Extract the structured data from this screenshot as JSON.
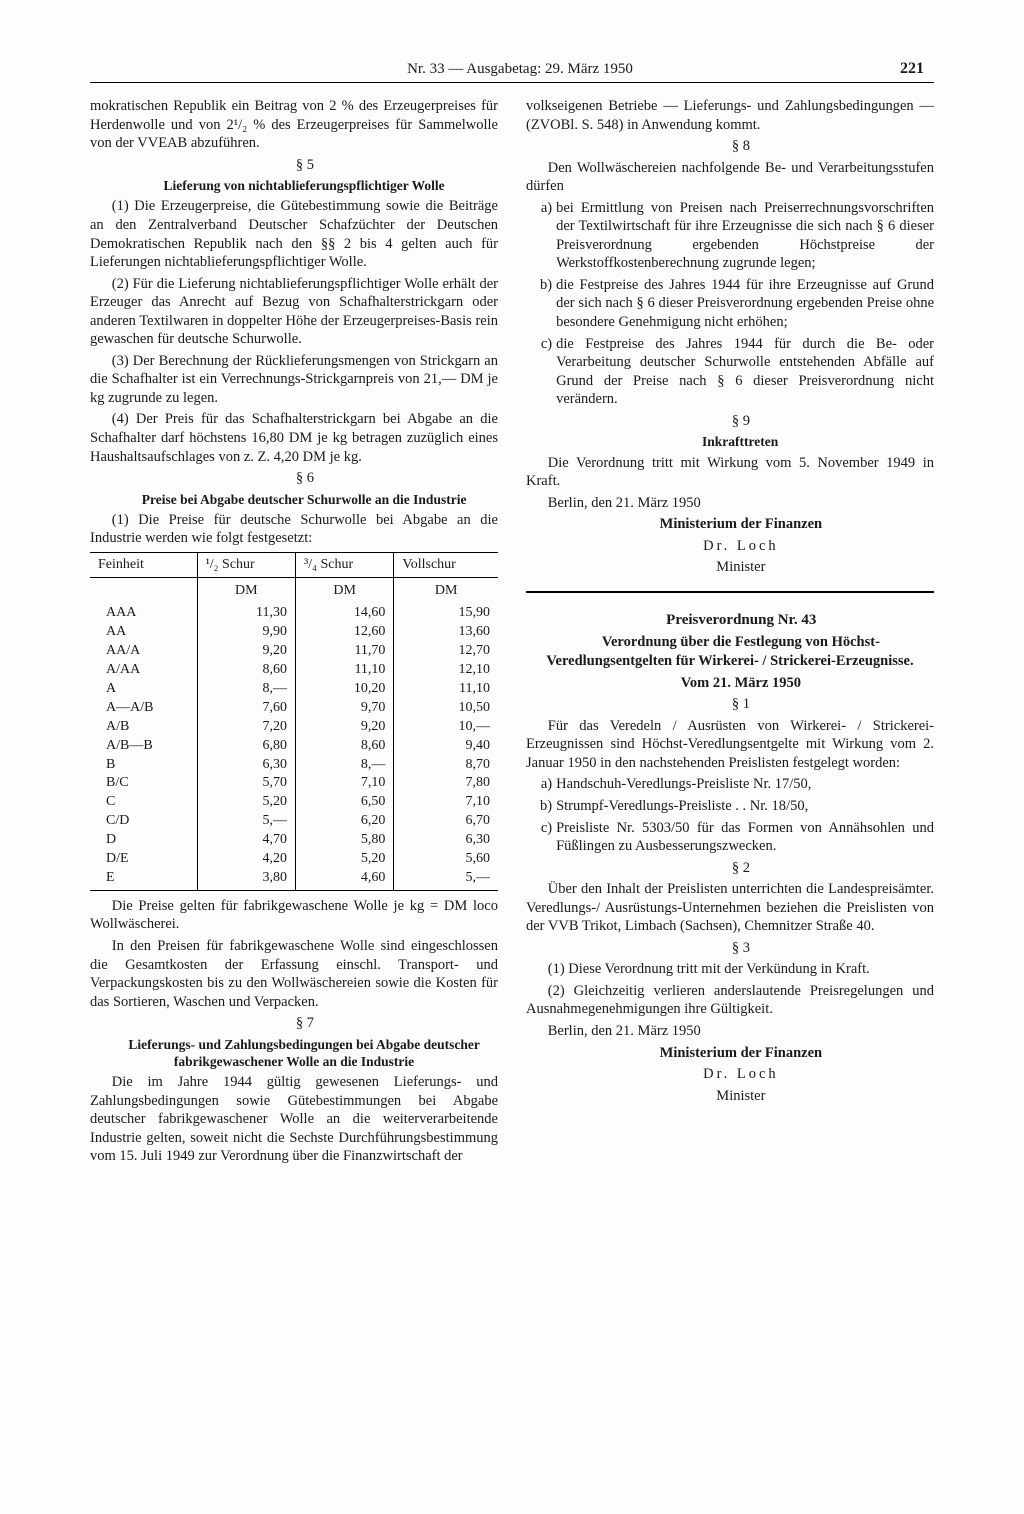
{
  "header": {
    "center": "Nr. 33 — Ausgabetag: 29. März 1950",
    "page": "221"
  },
  "leftCol": {
    "intro": "mokratischen Republik ein Beitrag von 2 % des Erzeugerpreises für Herdenwolle und von 2¹/₂ % des Erzeugerpreises für Sammelwolle von der VVEAB abzuführen.",
    "s5": {
      "num": "§ 5",
      "title": "Lieferung von nichtablieferungspflichtiger Wolle",
      "p1": "(1) Die Erzeugerpreise, die Gütebestimmung sowie die Beiträge an den Zentralverband Deutscher Schafzüchter der Deutschen Demokratischen Republik nach den §§ 2 bis 4 gelten auch für Lieferungen nichtablieferungspflichtiger Wolle.",
      "p2": "(2) Für die Lieferung nichtablieferungspflichtiger Wolle erhält der Erzeuger das Anrecht auf Bezug von Schafhalterstrickgarn oder anderen Textilwaren in doppelter Höhe der Erzeugerpreises-Basis rein gewaschen für deutsche Schurwolle.",
      "p3": "(3) Der Berechnung der Rücklieferungsmengen von Strickgarn an die Schafhalter ist ein Verrechnungs-Strickgarnpreis von 21,— DM je kg zugrunde zu legen.",
      "p4": "(4) Der Preis für das Schafhalterstrickgarn bei Abgabe an die Schafhalter darf höchstens 16,80 DM je kg betragen zuzüglich eines Haushaltsaufschlages von z. Z. 4,20 DM je kg."
    },
    "s6": {
      "num": "§ 6",
      "title": "Preise bei Abgabe deutscher Schurwolle an die Industrie",
      "p1": "(1) Die Preise für deutsche Schurwolle bei Abgabe an die Industrie werden wie folgt festgesetzt:",
      "table": {
        "headers": [
          "Feinheit",
          "¹/₂ Schur",
          "³/₄ Schur",
          "Vollschur"
        ],
        "dm": "DM",
        "rows": [
          [
            "AAA",
            "11,30",
            "14,60",
            "15,90"
          ],
          [
            "AA",
            "9,90",
            "12,60",
            "13,60"
          ],
          [
            "AA/A",
            "9,20",
            "11,70",
            "12,70"
          ],
          [
            "A/AA",
            "8,60",
            "11,10",
            "12,10"
          ],
          [
            "A",
            "8,—",
            "10,20",
            "11,10"
          ],
          [
            "A—A/B",
            "7,60",
            "9,70",
            "10,50"
          ],
          [
            "A/B",
            "7,20",
            "9,20",
            "10,—"
          ],
          [
            "A/B—B",
            "6,80",
            "8,60",
            "9,40"
          ],
          [
            "B",
            "6,30",
            "8,—",
            "8,70"
          ],
          [
            "B/C",
            "5,70",
            "7,10",
            "7,80"
          ],
          [
            "C",
            "5,20",
            "6,50",
            "7,10"
          ],
          [
            "C/D",
            "5,—",
            "6,20",
            "6,70"
          ],
          [
            "D",
            "4,70",
            "5,80",
            "6,30"
          ],
          [
            "D/E",
            "4,20",
            "5,20",
            "5,60"
          ],
          [
            "E",
            "3,80",
            "4,60",
            "5,—"
          ]
        ]
      },
      "note1": "Die Preise gelten für fabrikgewaschene Wolle je kg = DM loco Wollwäscherei.",
      "note2": "In den Preisen für fabrikgewaschene Wolle sind eingeschlossen die Gesamtkosten der Erfassung einschl. Transport- und Verpackungskosten bis zu den Wollwäschereien sowie die Kosten für das Sortieren, Waschen und Verpacken."
    },
    "s7": {
      "num": "§ 7",
      "title": "Lieferungs- und Zahlungsbedingungen bei Abgabe deutscher fabrikgewaschener Wolle an die Industrie",
      "p1": "Die im Jahre 1944 gültig gewesenen Lieferungs- und Zahlungsbedingungen sowie Gütebestimmungen bei Abgabe deutscher fabrikgewaschener Wolle an die weiterverarbeitende Industrie gelten, soweit nicht die Sechste Durchführungsbestimmung vom 15. Juli 1949 zur Verordnung über die Finanzwirtschaft der"
    }
  },
  "rightCol": {
    "cont": "volkseigenen Betriebe — Lieferungs- und Zahlungsbedingungen — (ZVOBl. S. 548) in Anwendung kommt.",
    "s8": {
      "num": "§ 8",
      "intro": "Den Wollwäschereien nachfolgende Be- und Verarbeitungsstufen dürfen",
      "a": "bei Ermittlung von Preisen nach Preiserrechnungsvorschriften der Textilwirtschaft für ihre Erzeugnisse die sich nach § 6 dieser Preisverordnung ergebenden Höchstpreise der Werkstoffkostenberechnung zugrunde legen;",
      "b": "die Festpreise des Jahres 1944 für ihre Erzeugnisse auf Grund der sich nach § 6 dieser Preisverordnung ergebenden Preise ohne besondere Genehmigung nicht erhöhen;",
      "c": "die Festpreise des Jahres 1944 für durch die Be- oder Verarbeitung deutscher Schurwolle entstehenden Abfälle auf Grund der Preise nach § 6 dieser Preisverordnung nicht verändern."
    },
    "s9": {
      "num": "§ 9",
      "title": "Inkrafttreten",
      "p1": "Die Verordnung tritt mit Wirkung vom 5. November 1949 in Kraft.",
      "date": "Berlin, den 21. März 1950",
      "ministry": "Ministerium der Finanzen",
      "name": "Dr. Loch",
      "role": "Minister"
    },
    "decree": {
      "title": "Preisverordnung Nr. 43",
      "subtitle": "Verordnung über die Festlegung von Höchst-Veredlungsentgelten für Wirkerei- / Strickerei-Erzeugnisse.",
      "date": "Vom 21. März 1950",
      "s1": {
        "num": "§ 1",
        "intro": "Für das Veredeln / Ausrüsten von Wirkerei- / Strickerei-Erzeugnissen sind Höchst-Veredlungsentgelte mit Wirkung vom 2. Januar 1950 in den nachstehenden Preislisten festgelegt worden:",
        "a": "Handschuh-Veredlungs-Preisliste Nr. 17/50,",
        "b": "Strumpf-Veredlungs-Preisliste . . Nr. 18/50,",
        "c": "Preisliste Nr. 5303/50 für das Formen von Annähsohlen und Füßlingen zu Ausbesserungszwecken."
      },
      "s2": {
        "num": "§ 2",
        "p1": "Über den Inhalt der Preislisten unterrichten die Landespreisämter. Veredlungs-/ Ausrüstungs-Unternehmen beziehen die Preislisten von der VVB Trikot, Limbach (Sachsen), Chemnitzer Straße 40."
      },
      "s3": {
        "num": "§ 3",
        "p1": "(1) Diese Verordnung tritt mit der Verkündung in Kraft.",
        "p2": "(2) Gleichzeitig verlieren anderslautende Preisregelungen und Ausnahmegenehmigungen ihre Gültigkeit.",
        "date": "Berlin, den 21. März 1950",
        "ministry": "Ministerium der Finanzen",
        "name": "Dr. Loch",
        "role": "Minister"
      }
    }
  }
}
